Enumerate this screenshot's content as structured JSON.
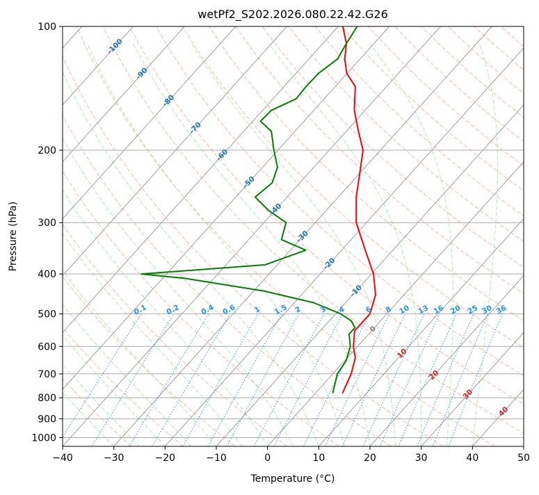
{
  "chart_data": {
    "type": "line",
    "subtype": "skew-t log-p diagram",
    "title": "wetPf2_S202.2026.080.22.42.G26",
    "xlabel": "Temperature (°C)",
    "ylabel": "Pressure (hPa)",
    "xlim": [
      -40,
      50
    ],
    "ylim": [
      1050,
      100
    ],
    "y_scale": "log",
    "x_ticks": [
      -40,
      -30,
      -20,
      -10,
      0,
      10,
      20,
      30,
      40,
      50
    ],
    "x_tick_labels": [
      "−40",
      "−30",
      "−20",
      "−10",
      "0",
      "10",
      "20",
      "30",
      "40",
      "50"
    ],
    "y_ticks": [
      100,
      200,
      300,
      400,
      500,
      600,
      700,
      800,
      900,
      1000
    ],
    "y_tick_labels": [
      "100",
      "200",
      "300",
      "400",
      "500",
      "600",
      "700",
      "800",
      "900",
      "1000"
    ],
    "grid": true,
    "series": [
      {
        "role": "temperature",
        "color": "#ff0000",
        "points": [
          {
            "p": 780,
            "t": 5.3
          },
          {
            "p": 700,
            "t": 3.6
          },
          {
            "p": 640,
            "t": 1.6
          },
          {
            "p": 600,
            "t": -0.8
          },
          {
            "p": 550,
            "t": -3.3
          },
          {
            "p": 500,
            "t": -3.3
          },
          {
            "p": 450,
            "t": -5.5
          },
          {
            "p": 400,
            "t": -9.6
          },
          {
            "p": 350,
            "t": -15.4
          },
          {
            "p": 300,
            "t": -22.0
          },
          {
            "p": 260,
            "t": -26.5
          },
          {
            "p": 230,
            "t": -29.7
          },
          {
            "p": 200,
            "t": -33.4
          },
          {
            "p": 180,
            "t": -37.6
          },
          {
            "p": 160,
            "t": -42.1
          },
          {
            "p": 140,
            "t": -46.1
          },
          {
            "p": 130,
            "t": -50.1
          },
          {
            "p": 120,
            "t": -53.0
          },
          {
            "p": 110,
            "t": -55.4
          },
          {
            "p": 100,
            "t": -59.1
          }
        ]
      },
      {
        "role": "dewpoint",
        "color": "#008000",
        "points": [
          {
            "p": 780,
            "t": 3.4
          },
          {
            "p": 700,
            "t": 0.9
          },
          {
            "p": 650,
            "t": 0.3
          },
          {
            "p": 600,
            "t": -1.4
          },
          {
            "p": 560,
            "t": -3.8
          },
          {
            "p": 540,
            "t": -3.8
          },
          {
            "p": 520,
            "t": -5.7
          },
          {
            "p": 500,
            "t": -9.0
          },
          {
            "p": 470,
            "t": -16.2
          },
          {
            "p": 440,
            "t": -28.0
          },
          {
            "p": 410,
            "t": -45.6
          },
          {
            "p": 400,
            "t": -54.9
          },
          {
            "p": 380,
            "t": -32.4
          },
          {
            "p": 350,
            "t": -27.0
          },
          {
            "p": 330,
            "t": -33.6
          },
          {
            "p": 300,
            "t": -35.7
          },
          {
            "p": 280,
            "t": -41.3
          },
          {
            "p": 260,
            "t": -46.2
          },
          {
            "p": 240,
            "t": -45.4
          },
          {
            "p": 220,
            "t": -47.1
          },
          {
            "p": 200,
            "t": -50.8
          },
          {
            "p": 180,
            "t": -54.6
          },
          {
            "p": 170,
            "t": -58.5
          },
          {
            "p": 160,
            "t": -58.3
          },
          {
            "p": 150,
            "t": -55.5
          },
          {
            "p": 140,
            "t": -55.7
          },
          {
            "p": 130,
            "t": -55.6
          },
          {
            "p": 120,
            "t": -54.4
          },
          {
            "p": 110,
            "t": -55.4
          },
          {
            "p": 100,
            "t": -56.3
          }
        ]
      }
    ],
    "isotherm_labels": [
      "-100",
      "-90",
      "-80",
      "-70",
      "-60",
      "-50",
      "-40",
      "-30",
      "-20",
      "-10"
    ],
    "mixing_ratio_labels": [
      "0.1",
      "0.2",
      "0.4",
      "0.6",
      "1",
      "1.5",
      "2",
      "3",
      "4",
      "6",
      "8",
      "10",
      "13",
      "16",
      "20",
      "25",
      "30",
      "36"
    ],
    "theta_e_labels": [
      "0",
      "10",
      "20",
      "30",
      "40"
    ],
    "colors": {
      "isotherm_label": "#1f77b4",
      "mixing_ratio": "#1e90ff",
      "theta_e_label": "#d62728",
      "theta_e_zero": "#808080",
      "dry_adiabat": "#ffa07a",
      "moist_adiabat": "#90ee90",
      "grid": "#a9a9a9"
    }
  }
}
